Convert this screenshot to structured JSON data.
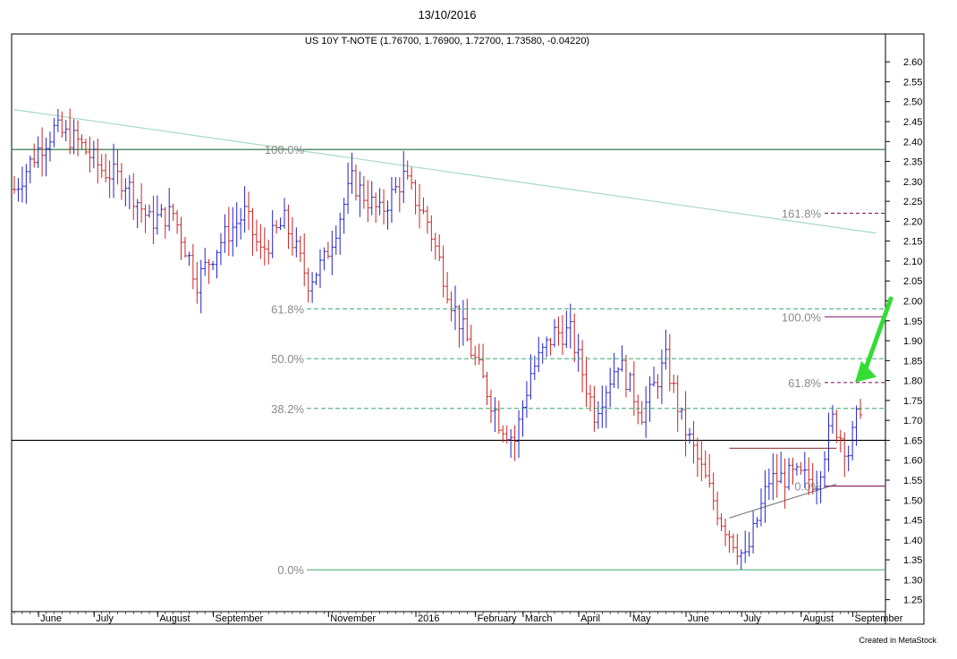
{
  "header": {
    "date": "13/10/2016"
  },
  "footer": {
    "credit": "Created in MetaStock"
  },
  "chart_data": {
    "type": "ohlc",
    "title": "US 10Y T-NOTE (1.76700, 1.76900, 1.72700, 1.73580, -0.04220)",
    "y_axis": {
      "range": [
        1.22,
        2.67
      ],
      "ticks": [
        "2.60",
        "2.55",
        "2.50",
        "2.45",
        "2.40",
        "2.35",
        "2.30",
        "2.25",
        "2.20",
        "2.15",
        "2.10",
        "2.05",
        "2.00",
        "1.95",
        "1.90",
        "1.85",
        "1.80",
        "1.75",
        "1.70",
        "1.65",
        "1.60",
        "1.55",
        "1.50",
        "1.45",
        "1.40",
        "1.35",
        "1.30",
        "1.25"
      ],
      "position": "right"
    },
    "x_axis": {
      "months": [
        "June",
        "July",
        "August",
        "September",
        "November",
        "2016",
        "February",
        "March",
        "April",
        "May",
        "June",
        "July",
        "August",
        "September"
      ],
      "bars": 214
    },
    "price_path": [
      [
        0,
        2.28
      ],
      [
        6,
        2.38
      ],
      [
        10,
        2.43
      ],
      [
        16,
        2.4
      ],
      [
        22,
        2.33
      ],
      [
        28,
        2.3
      ],
      [
        34,
        2.2
      ],
      [
        40,
        2.22
      ],
      [
        46,
        2.05
      ],
      [
        52,
        2.15
      ],
      [
        58,
        2.22
      ],
      [
        62,
        2.12
      ],
      [
        68,
        2.2
      ],
      [
        74,
        2.05
      ],
      [
        78,
        2.1
      ],
      [
        85,
        2.3
      ],
      [
        92,
        2.22
      ],
      [
        98,
        2.31
      ],
      [
        104,
        2.2
      ],
      [
        110,
        2.0
      ],
      [
        118,
        1.8
      ],
      [
        122,
        1.7
      ],
      [
        126,
        1.65
      ],
      [
        130,
        1.82
      ],
      [
        136,
        1.92
      ],
      [
        140,
        1.92
      ],
      [
        146,
        1.72
      ],
      [
        152,
        1.85
      ],
      [
        158,
        1.72
      ],
      [
        164,
        1.85
      ],
      [
        168,
        1.7
      ],
      [
        172,
        1.6
      ],
      [
        178,
        1.45
      ],
      [
        184,
        1.35
      ],
      [
        190,
        1.55
      ],
      [
        196,
        1.56
      ],
      [
        202,
        1.55
      ],
      [
        206,
        1.7
      ],
      [
        210,
        1.62
      ],
      [
        214,
        1.78
      ],
      [
        217,
        1.74
      ]
    ],
    "last_bar": {
      "open": 1.767,
      "high": 1.769,
      "low": 1.727,
      "close": 1.7358,
      "change": -0.0422
    },
    "horizontal_lines": [
      {
        "value": 2.38,
        "color": "#1e6b3a"
      },
      {
        "value": 1.65,
        "color": "#000000"
      }
    ],
    "trendlines": [
      {
        "from": [
          0,
          2.48
        ],
        "to": [
          217,
          2.17
        ],
        "color": "#a8d8c8"
      },
      {
        "from": [
          180,
          1.455
        ],
        "to": [
          207,
          1.54
        ],
        "color": "#808080"
      },
      {
        "from": [
          180,
          1.63
        ],
        "to": [
          207,
          1.63
        ],
        "color": "#a05050"
      }
    ],
    "fib_retracement": {
      "color": "#3aa86b",
      "levels": [
        {
          "label": "100.0%",
          "value": 2.38
        },
        {
          "label": "61.8%",
          "value": 1.98
        },
        {
          "label": "50.0%",
          "value": 1.855
        },
        {
          "label": "38.2%",
          "value": 1.73
        },
        {
          "label": "0.0%",
          "value": 1.325
        }
      ]
    },
    "fib_projection": {
      "color": "#8a2a6a",
      "levels": [
        {
          "label": "161.8%",
          "value": 2.22
        },
        {
          "label": "100.0%",
          "value": 1.96
        },
        {
          "label": "61.8%",
          "value": 1.795
        },
        {
          "label": "0.0%",
          "value": 1.535
        }
      ]
    },
    "annotation": {
      "type": "arrow",
      "color": "#33dd33",
      "points_to": 1.8
    },
    "colors": {
      "up": "#2222cc",
      "down": "#cc2222"
    }
  }
}
